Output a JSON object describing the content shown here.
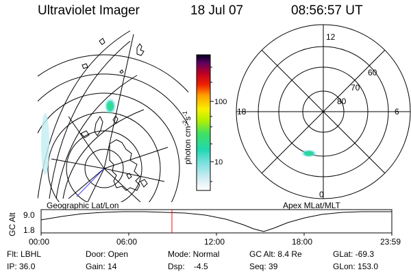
{
  "header": {
    "title": "Ultraviolet Imager",
    "date": "18 Jul 07",
    "time": "08:56:57 UT"
  },
  "colorbar": {
    "unit_label": "photon cm",
    "unit_exp1": "-2",
    "unit_mid": "s",
    "unit_exp2": "-1",
    "ticks": [
      "100",
      "10"
    ]
  },
  "polar": {
    "mlt_labels": [
      "12",
      "18",
      "6",
      "0"
    ],
    "lat_labels": [
      "60",
      "70",
      "80"
    ]
  },
  "map_captions": {
    "left": "Geographic Lat/Lon",
    "right": "Apex MLat/MLT"
  },
  "altitude_plot": {
    "ylabel": "GC Alt",
    "yticks": [
      "9.0",
      "1.8"
    ],
    "xticks": [
      "00:00",
      "06:00",
      "12:00",
      "18:00",
      "23:59"
    ],
    "marker_time": "08:56:57"
  },
  "info_panel": {
    "row1": [
      "Flt: LBHL",
      "Door: Open",
      "Mode: Normal",
      "GC Alt: 8.4 Re",
      "GLat: -69.3"
    ],
    "row2": [
      "IP: 36.0",
      "Gain: 14",
      "Dsp:    -4.5",
      "Seq: 39",
      "GLon: 153.0"
    ]
  },
  "colors": {
    "grid": "#000000",
    "marker": "#ff0000",
    "coast": "#000000"
  }
}
